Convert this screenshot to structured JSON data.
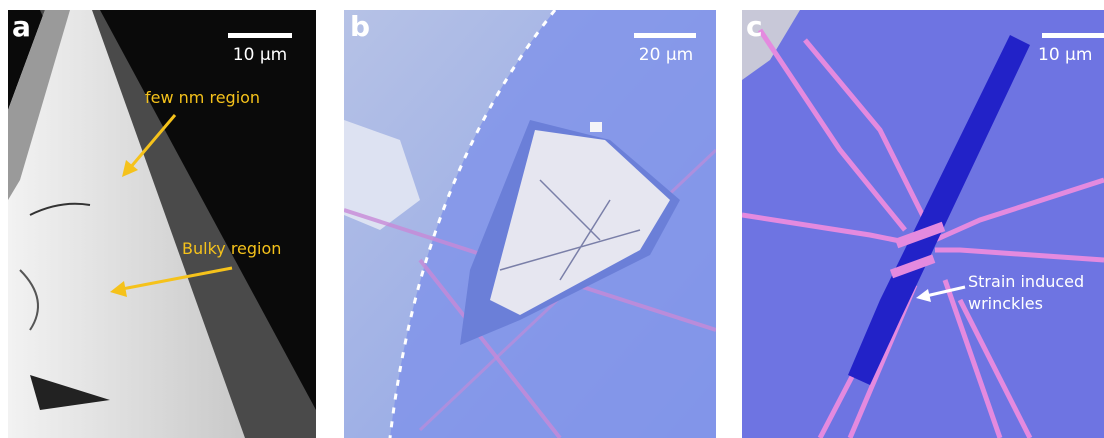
{
  "panels": [
    {
      "label": "a",
      "scale_bar": "10 μm",
      "annotations": [
        "few nm region",
        "Bulky region"
      ]
    },
    {
      "label": "b",
      "scale_bar": "20 μm"
    },
    {
      "label": "c",
      "scale_bar": "10 μm",
      "annotations": [
        "Strain induced",
        "wrinckles"
      ]
    }
  ]
}
